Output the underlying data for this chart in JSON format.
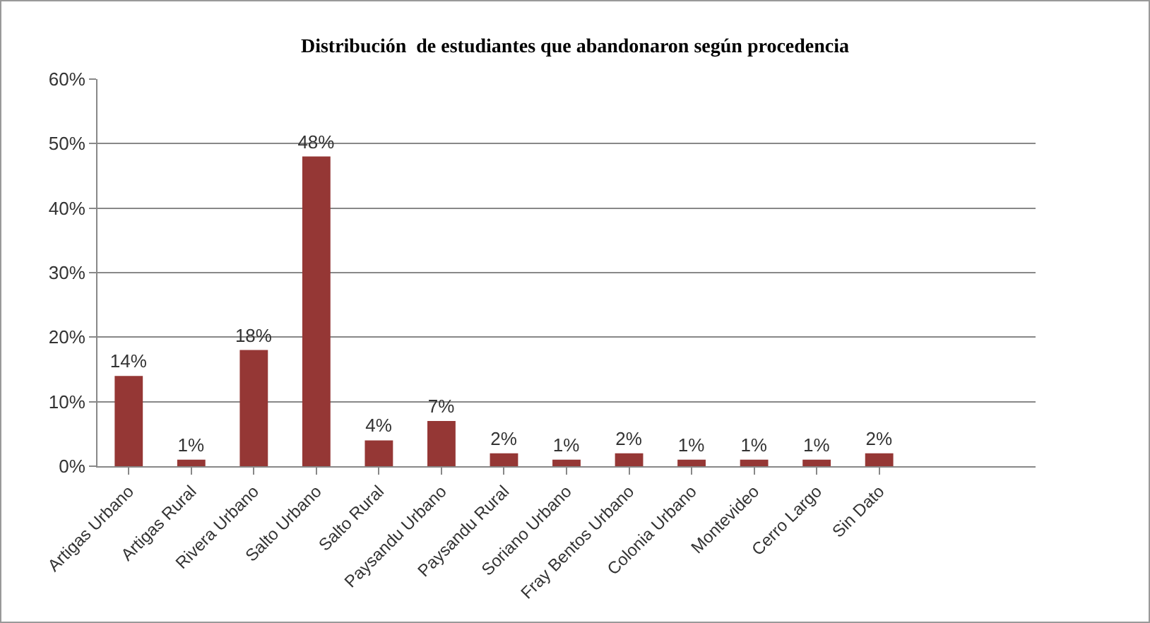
{
  "chart_data": {
    "type": "bar",
    "title": "Distribución  de estudiantes que abandonaron según procedencia",
    "categories": [
      "Artigas Urbano",
      "Artigas Rural",
      "Rivera Urbano",
      "Salto Urbano",
      "Salto Rural",
      "Paysandu Urbano",
      "Paysandu Rural",
      "Soriano Urbano",
      "Fray Bentos Urbano",
      "Colonia Urbano",
      "Montevideo",
      "Cerro Largo",
      "Sin Dato",
      null,
      null
    ],
    "values": [
      14,
      1,
      18,
      48,
      4,
      7,
      2,
      1,
      2,
      1,
      1,
      1,
      2,
      null,
      null
    ],
    "value_labels": [
      "14%",
      "1%",
      "18%",
      "48%",
      "4%",
      "7%",
      "2%",
      "1%",
      "2%",
      "1%",
      "1%",
      "1%",
      "2%",
      null,
      null
    ],
    "color": "#953735",
    "ylim": [
      0,
      60
    ],
    "yticks": [
      {
        "value": 0,
        "label": "0%"
      },
      {
        "value": 10,
        "label": "10%"
      },
      {
        "value": 20,
        "label": "20%"
      },
      {
        "value": 30,
        "label": "30%"
      },
      {
        "value": 40,
        "label": "40%"
      },
      {
        "value": 50,
        "label": "50%"
      },
      {
        "value": 60,
        "label": "60%"
      }
    ],
    "grid": "y",
    "legend": false
  }
}
